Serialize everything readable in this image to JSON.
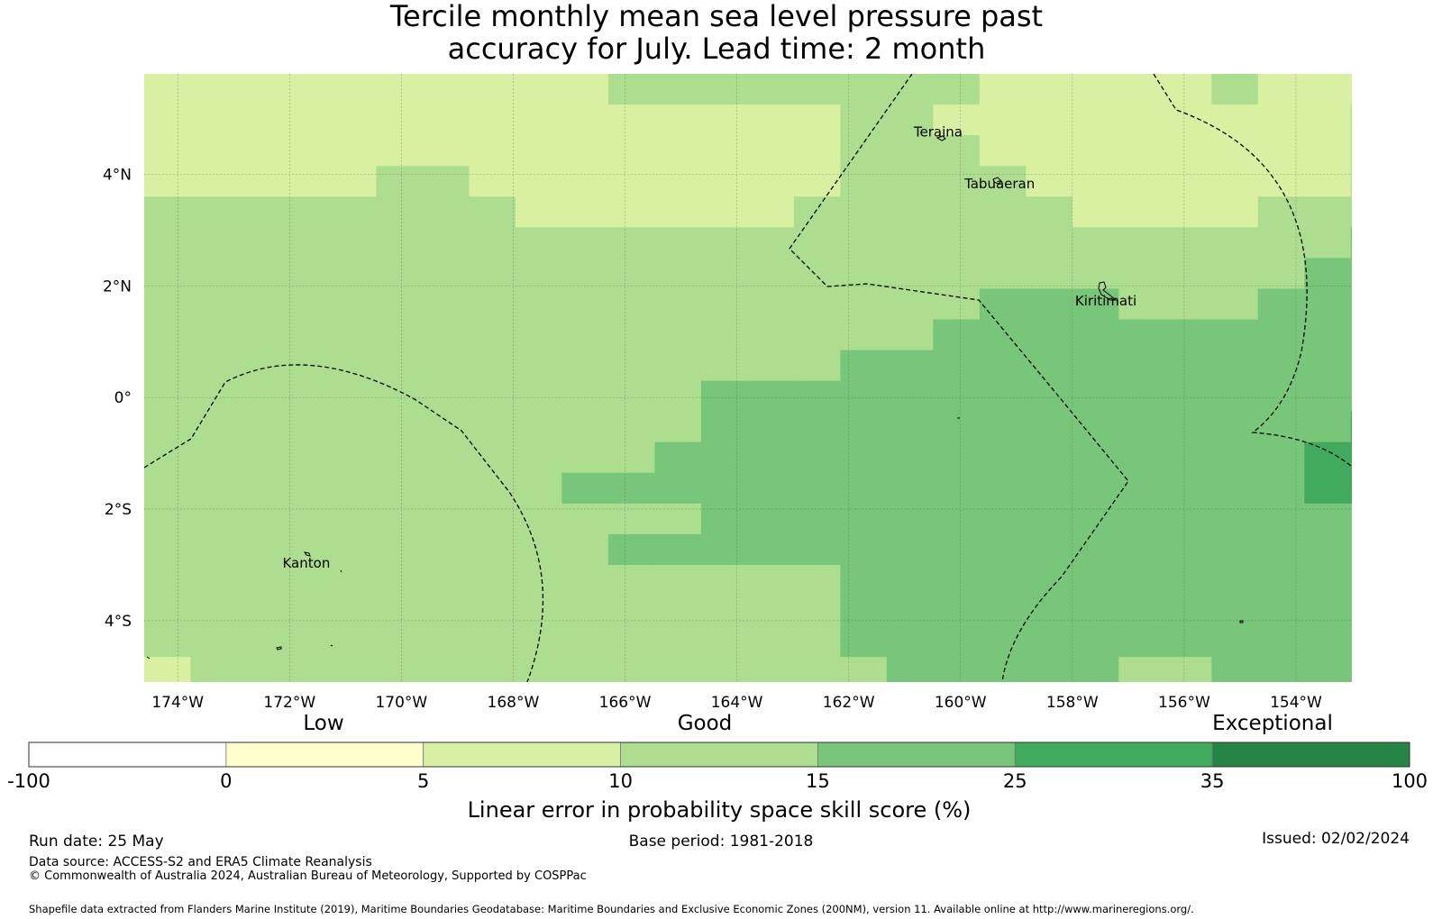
{
  "title": {
    "line1": "Tercile monthly mean sea level pressure past",
    "line2": "accuracy for July. Lead time: 2 month"
  },
  "map": {
    "lon_range": [
      -174.6,
      -153.0
    ],
    "lat_range": [
      -5.1,
      5.8
    ],
    "x_ticks": [
      {
        "value": -174,
        "label": "174°W"
      },
      {
        "value": -172,
        "label": "172°W"
      },
      {
        "value": -170,
        "label": "170°W"
      },
      {
        "value": -168,
        "label": "168°W"
      },
      {
        "value": -166,
        "label": "166°W"
      },
      {
        "value": -164,
        "label": "164°W"
      },
      {
        "value": -162,
        "label": "162°W"
      },
      {
        "value": -160,
        "label": "160°W"
      },
      {
        "value": -158,
        "label": "158°W"
      },
      {
        "value": -156,
        "label": "156°W"
      },
      {
        "value": -154,
        "label": "154°W"
      }
    ],
    "y_ticks": [
      {
        "value": 4,
        "label": "4°N"
      },
      {
        "value": 2,
        "label": "2°N"
      },
      {
        "value": 0,
        "label": "0°"
      },
      {
        "value": -2,
        "label": "2°S"
      },
      {
        "value": -4,
        "label": "4°S"
      }
    ],
    "places": [
      {
        "name": "Teraina",
        "lon": -160.4,
        "lat": 4.68
      },
      {
        "name": "Tabuaeran",
        "lon": -159.3,
        "lat": 3.75
      },
      {
        "name": "Kiritimati",
        "lon": -157.4,
        "lat": 1.65
      },
      {
        "name": "Kanton",
        "lon": -171.7,
        "lat": -3.05
      }
    ],
    "grid": {
      "lon0": -174.6,
      "dlon": 0.83,
      "lat0": 5.8,
      "dlat": 0.55,
      "level_colors": [
        "#ffffff",
        "#ffffcc",
        "#d9f0a3",
        "#addd8e",
        "#78c679",
        "#41ab5d",
        "#238443"
      ],
      "rows": [
        "222222222233333333222223222",
        "222222222222222332222222223",
        "222222222222222333222222223",
        "222223322222222333322222223",
        "333333332222223333332222333",
        "333333333333333333333333334",
        "333333333333333333333333344",
        "333333333333333333444333444",
        "333333333333333334444444444",
        "333333333333333444444444444",
        "333333333333444444444444444",
        "333333333333444444444444445",
        "333333333334444444444444455",
        "333333333444444444444444455",
        "333333333333444444444444444",
        "333333333344444444444444444",
        "333333333333333444444444444",
        "333333333333333444444444444",
        "333333333333333444444444444",
        "233333333333333344444334444",
        "233333333333333333333333333",
        "333333333333333333333333334",
        "333333333333333333333333334"
      ]
    }
  },
  "colorbar": {
    "category_labels": [
      "Low",
      "Good",
      "Exceptional"
    ],
    "boundaries": [
      "-100",
      "0",
      "5",
      "10",
      "15",
      "25",
      "35",
      "100"
    ],
    "colors": [
      "#ffffff",
      "#ffffcc",
      "#d9f0a3",
      "#addd8e",
      "#78c679",
      "#41ab5d",
      "#238443"
    ],
    "label": "Linear error in probability space skill score (%)"
  },
  "footer": {
    "run_date": "Run date: 25 May",
    "base_period": "Base period: 1981-2018",
    "issued": "Issued: 02/02/2024",
    "data_source": "Data source: ACCESS-S2 and ERA5 Climate Reanalysis",
    "copyright": "© Commonwealth of Australia 2024, Australian Bureau of Meteorology, Supported by COSPPac",
    "shapefile": "Shapefile data extracted from Flanders Marine Institute (2019), Maritime Boundaries Geodatabase: Maritime Boundaries and Exclusive Economic Zones (200NM), version 11. Available online at http://www.marineregions.org/."
  }
}
